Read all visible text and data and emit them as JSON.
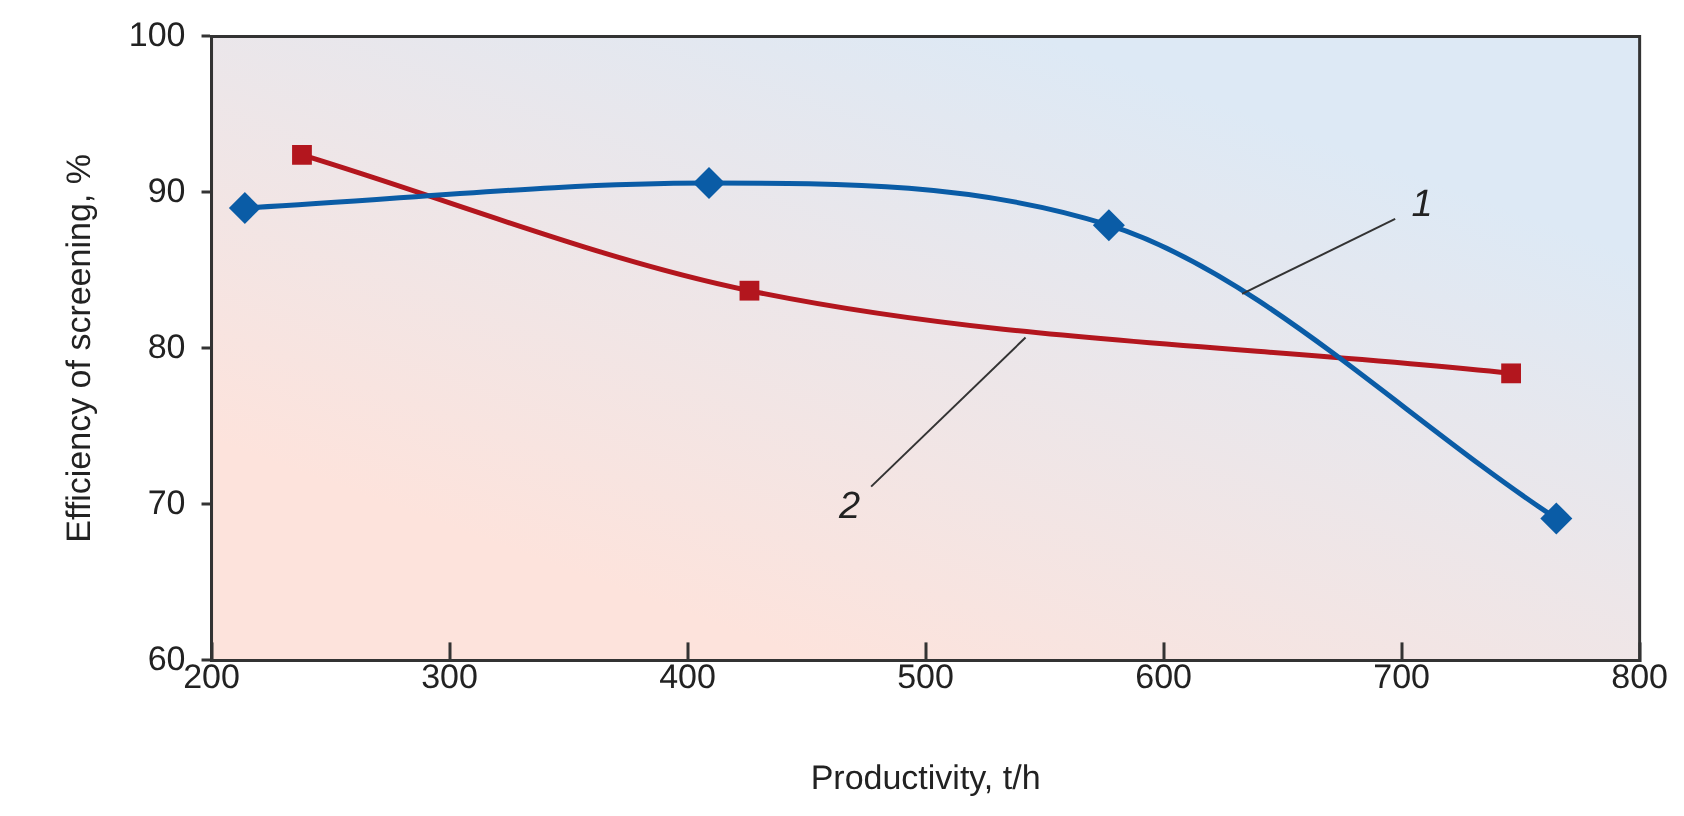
{
  "chart_data": {
    "type": "line",
    "xlabel": "Productivity, t/h",
    "ylabel": "Efficiency of screening, %",
    "series": [
      {
        "color": "#0a5ca6",
        "marker": "diamond",
        "x": [
          214,
          409,
          577,
          765
        ],
        "values": [
          89,
          90.6,
          87.9,
          69.1
        ]
      },
      {
        "color": "#b3161e",
        "marker": "square",
        "x": [
          238,
          426,
          746
        ],
        "values": [
          92.4,
          83.7,
          78.4
        ]
      }
    ],
    "xlim": [
      200,
      800
    ],
    "xticks": [
      200,
      300,
      400,
      500,
      600,
      700,
      800
    ],
    "ylim": [
      60,
      100
    ],
    "yticks": [
      60,
      70,
      80,
      90,
      100
    ],
    "grid": false,
    "legend": false,
    "annotations": [
      {
        "text": "1",
        "x": 633,
        "y": 83.5
      },
      {
        "text": "2",
        "x": 542,
        "y": 80.7
      }
    ]
  }
}
